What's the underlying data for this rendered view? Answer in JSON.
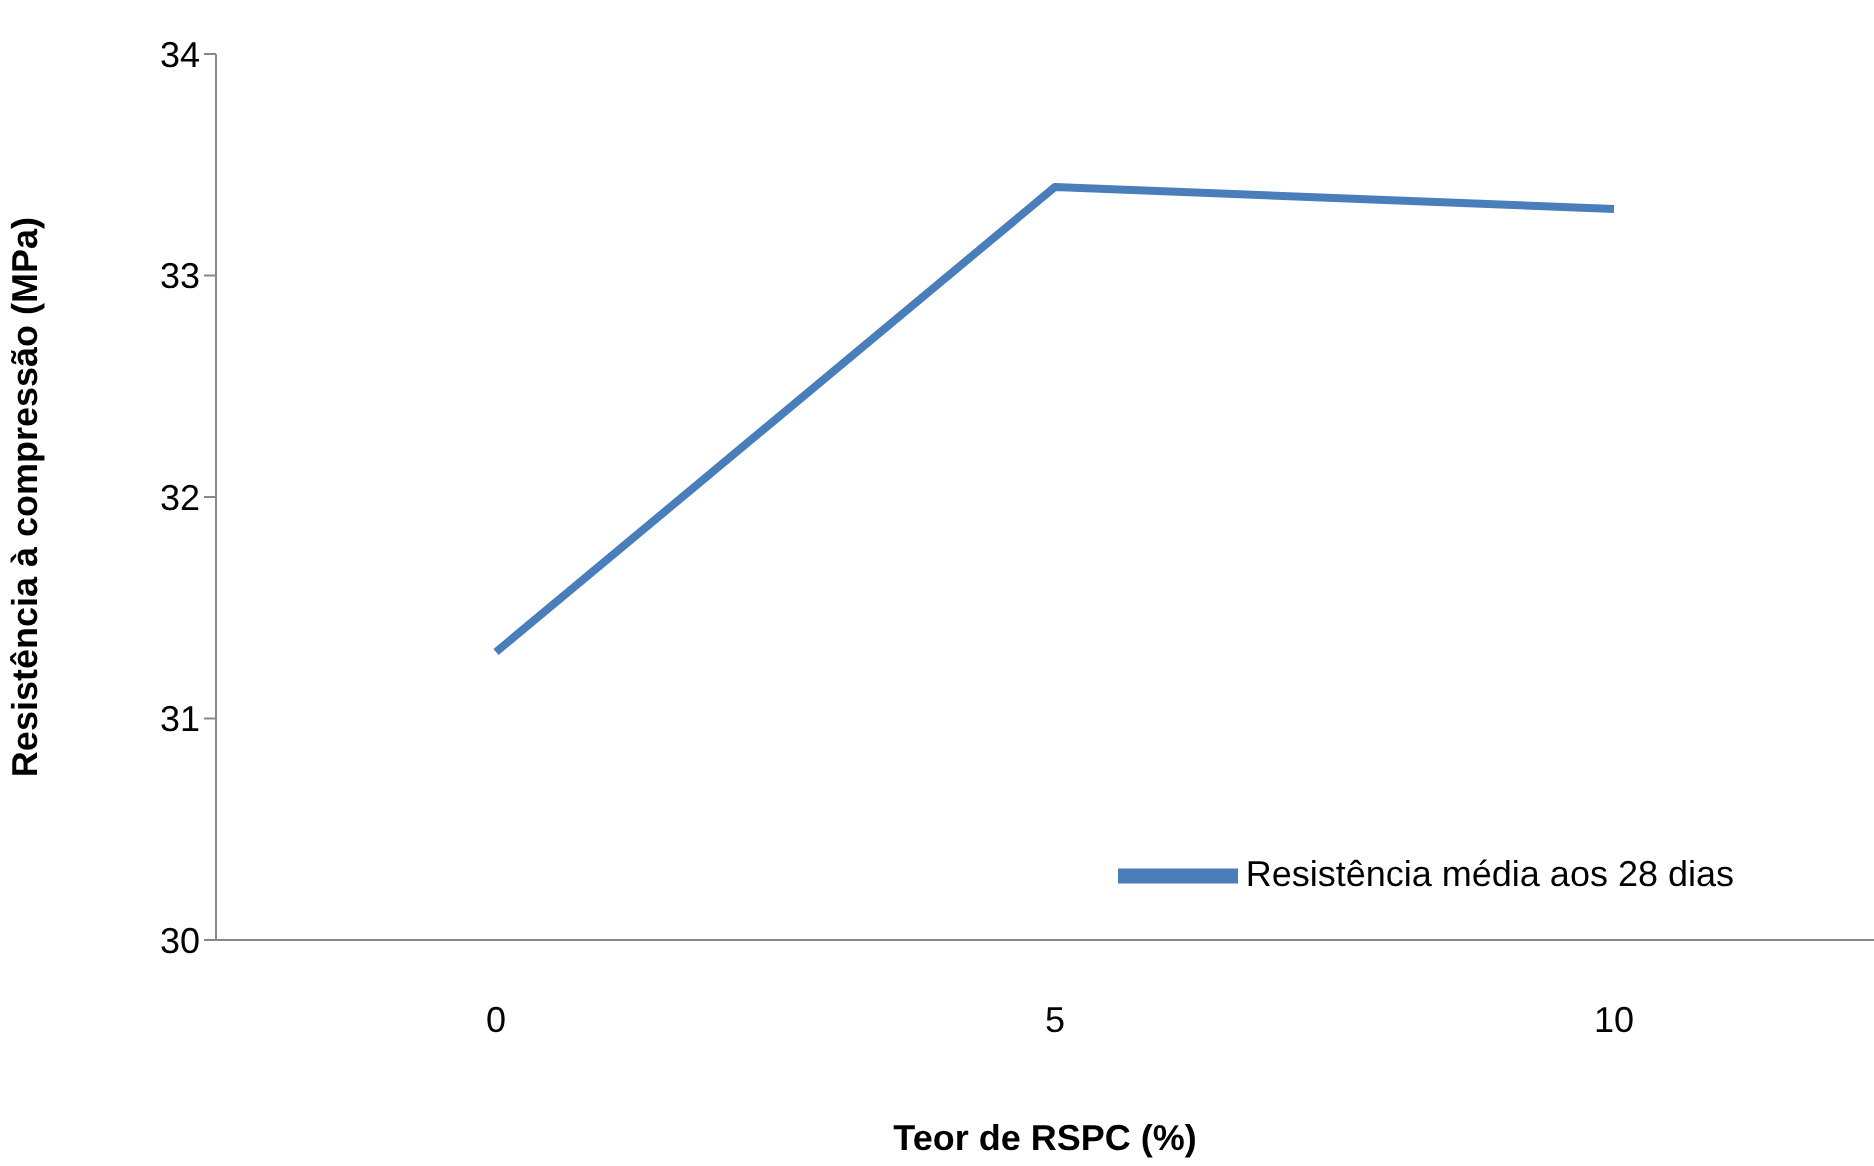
{
  "chart_data": {
    "type": "line",
    "xlabel": "Teor de RSPC (%)",
    "ylabel": "Resistência à compressão (MPa)",
    "categories": [
      "0",
      "5",
      "10"
    ],
    "series": [
      {
        "name": "Resistência média aos 28 dias",
        "color": "#4a7ebb",
        "values": [
          31.3,
          33.4,
          33.3
        ]
      }
    ],
    "ylim": [
      30,
      34
    ],
    "yticks": [
      30,
      31,
      32,
      33,
      34
    ],
    "grid": false,
    "legend": "bottom right",
    "marker": "none",
    "line_style": "solid"
  }
}
